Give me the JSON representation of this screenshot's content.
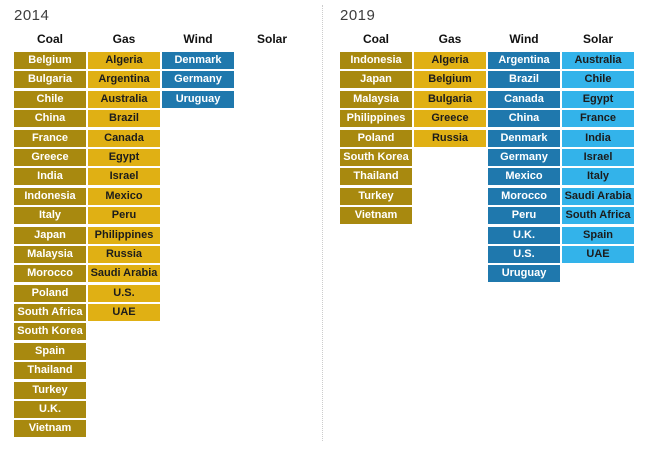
{
  "colors": {
    "coal": "#a8890f",
    "gas": "#e0b014",
    "wind": "#1f78ad",
    "solar": "#33b3ea",
    "cell_text_light": "#ffffff",
    "cell_text_dark": "#1c1c1c",
    "header_text": "#111111",
    "title_text": "#3d3d3d",
    "divider": "#cccccc"
  },
  "chart_data": [
    {
      "type": "table",
      "title": "2014",
      "column_labels": [
        "Coal",
        "Gas",
        "Wind",
        "Solar"
      ],
      "columns": [
        {
          "label": "Coal",
          "type": "coal",
          "items": [
            "Belgium",
            "Bulgaria",
            "Chile",
            "China",
            "France",
            "Greece",
            "India",
            "Indonesia",
            "Italy",
            "Japan",
            "Malaysia",
            "Morocco",
            "Poland",
            "South Africa",
            "South Korea",
            "Spain",
            "Thailand",
            "Turkey",
            "U.K.",
            "Vietnam"
          ]
        },
        {
          "label": "Gas",
          "type": "gas",
          "items": [
            "Algeria",
            "Argentina",
            "Australia",
            "Brazil",
            "Canada",
            "Egypt",
            "Israel",
            "Mexico",
            "Peru",
            "Philippines",
            "Russia",
            "Saudi Arabia",
            "U.S.",
            "UAE"
          ]
        },
        {
          "label": "Wind",
          "type": "wind",
          "items": [
            "Denmark",
            "Germany",
            "Uruguay"
          ]
        },
        {
          "label": "Solar",
          "type": "solar",
          "items": []
        }
      ]
    },
    {
      "type": "table",
      "title": "2019",
      "column_labels": [
        "Coal",
        "Gas",
        "Wind",
        "Solar"
      ],
      "columns": [
        {
          "label": "Coal",
          "type": "coal",
          "items": [
            "Indonesia",
            "Japan",
            "Malaysia",
            "Philippines",
            "Poland",
            "South Korea",
            "Thailand",
            "Turkey",
            "Vietnam"
          ]
        },
        {
          "label": "Gas",
          "type": "gas",
          "items": [
            "Algeria",
            "Belgium",
            "Bulgaria",
            "Greece",
            "Russia"
          ]
        },
        {
          "label": "Wind",
          "type": "wind",
          "items": [
            "Argentina",
            "Brazil",
            "Canada",
            "China",
            "Denmark",
            "Germany",
            "Mexico",
            "Morocco",
            "Peru",
            "U.K.",
            "U.S.",
            "Uruguay"
          ]
        },
        {
          "label": "Solar",
          "type": "solar",
          "items": [
            "Australia",
            "Chile",
            "Egypt",
            "France",
            "India",
            "Israel",
            "Italy",
            "Saudi Arabia",
            "South Africa",
            "Spain",
            "UAE"
          ]
        }
      ]
    }
  ]
}
